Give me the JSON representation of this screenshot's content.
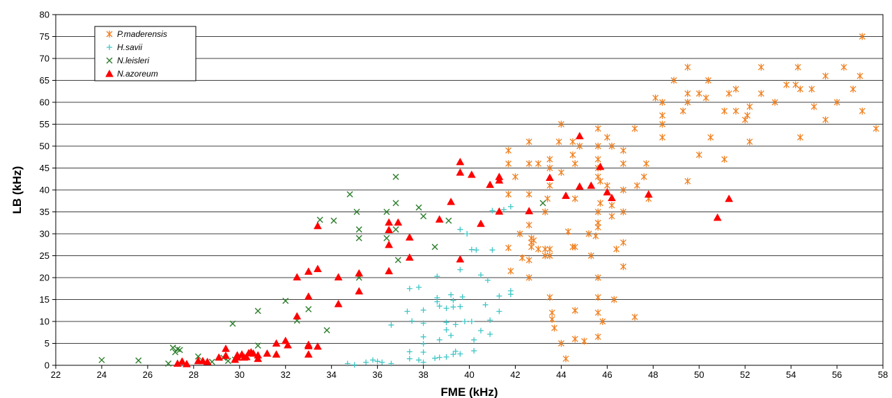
{
  "chart_data": {
    "type": "scatter",
    "title": "",
    "xlabel": "FME (kHz)",
    "ylabel": "LB (kHz)",
    "xlim": [
      22,
      58
    ],
    "ylim": [
      0,
      80
    ],
    "xticks": [
      "22",
      "24",
      "26",
      "28",
      "30",
      "32",
      "34",
      "36",
      "38",
      "40",
      "42",
      "44",
      "46",
      "48",
      "50",
      "52",
      "54",
      "56",
      "58"
    ],
    "yticks": [
      "0",
      "5",
      "10",
      "15",
      "20",
      "25",
      "30",
      "35",
      "40",
      "45",
      "50",
      "55",
      "60",
      "65",
      "70",
      "75",
      "80"
    ],
    "grid": "horizontal",
    "legend_position": "top-left",
    "series": [
      {
        "name": "P.maderensis",
        "marker": "asterisk",
        "color": "#f07f1e",
        "points": [
          [
            57.1,
            75
          ],
          [
            54.3,
            68
          ],
          [
            56.3,
            68
          ],
          [
            52.7,
            68
          ],
          [
            49.5,
            68
          ],
          [
            57,
            66
          ],
          [
            55.5,
            66
          ],
          [
            56.7,
            63
          ],
          [
            50.4,
            65
          ],
          [
            48.9,
            65
          ],
          [
            51.6,
            63
          ],
          [
            52.7,
            62
          ],
          [
            54.4,
            63
          ],
          [
            53.8,
            64
          ],
          [
            54.2,
            64
          ],
          [
            54.9,
            63
          ],
          [
            51.3,
            62
          ],
          [
            49.5,
            62
          ],
          [
            50,
            62
          ],
          [
            50.3,
            61
          ],
          [
            48.1,
            61
          ],
          [
            56,
            60
          ],
          [
            53.3,
            60
          ],
          [
            49.5,
            60
          ],
          [
            48.4,
            60
          ],
          [
            57.1,
            58
          ],
          [
            55,
            59
          ],
          [
            52.2,
            59
          ],
          [
            51.6,
            58
          ],
          [
            51.1,
            58
          ],
          [
            49.3,
            58
          ],
          [
            48.4,
            57
          ],
          [
            52.1,
            57
          ],
          [
            52,
            56
          ],
          [
            55.5,
            56
          ],
          [
            48.4,
            55
          ],
          [
            57.7,
            54
          ],
          [
            54.4,
            52
          ],
          [
            50.5,
            52
          ],
          [
            48.4,
            52
          ],
          [
            47.2,
            54
          ],
          [
            44,
            55
          ],
          [
            45.6,
            54
          ],
          [
            46,
            52
          ],
          [
            52.2,
            51
          ],
          [
            46.2,
            50
          ],
          [
            44.8,
            50
          ],
          [
            45.6,
            50
          ],
          [
            44.5,
            51
          ],
          [
            43.9,
            51
          ],
          [
            42.6,
            51
          ],
          [
            41.7,
            49
          ],
          [
            46.7,
            49
          ],
          [
            44.5,
            48
          ],
          [
            50,
            48
          ],
          [
            51.1,
            47
          ],
          [
            47.7,
            46
          ],
          [
            46.7,
            46
          ],
          [
            45.6,
            47
          ],
          [
            44.6,
            46
          ],
          [
            43.5,
            47
          ],
          [
            43,
            46
          ],
          [
            42.6,
            46
          ],
          [
            41.7,
            46
          ],
          [
            45.6,
            45
          ],
          [
            43.5,
            45
          ],
          [
            42,
            43
          ],
          [
            44,
            44
          ],
          [
            45.6,
            43
          ],
          [
            45.7,
            42
          ],
          [
            49.5,
            42
          ],
          [
            47.6,
            43
          ],
          [
            47.3,
            41
          ],
          [
            46,
            41
          ],
          [
            41.7,
            39
          ],
          [
            42.6,
            39
          ],
          [
            43.5,
            41
          ],
          [
            44.6,
            38
          ],
          [
            45.7,
            37
          ],
          [
            46.7,
            40
          ],
          [
            47.8,
            38
          ],
          [
            43.4,
            38
          ],
          [
            46.2,
            36.5
          ],
          [
            45.6,
            35
          ],
          [
            46.7,
            35
          ],
          [
            43.3,
            35
          ],
          [
            46.2,
            34
          ],
          [
            45.6,
            32.5
          ],
          [
            45.6,
            31.5
          ],
          [
            42.6,
            32
          ],
          [
            42.2,
            30
          ],
          [
            44.3,
            30.5
          ],
          [
            45.2,
            30
          ],
          [
            45.5,
            29.5
          ],
          [
            42.7,
            29
          ],
          [
            42.8,
            28.5
          ],
          [
            43.5,
            26.5
          ],
          [
            42.7,
            28
          ],
          [
            42.7,
            27
          ],
          [
            43,
            26.5
          ],
          [
            43.3,
            26.5
          ],
          [
            44.5,
            27
          ],
          [
            44.6,
            27
          ],
          [
            46.4,
            26.5
          ],
          [
            46.7,
            28
          ],
          [
            46.7,
            22.5
          ],
          [
            45.3,
            25
          ],
          [
            43.3,
            25
          ],
          [
            43.5,
            25
          ],
          [
            42.6,
            24
          ],
          [
            42.3,
            24.5
          ],
          [
            41.8,
            21.5
          ],
          [
            42.6,
            20
          ],
          [
            45.6,
            20
          ],
          [
            43.5,
            15.5
          ],
          [
            46.3,
            15
          ],
          [
            45.6,
            15.5
          ],
          [
            44.6,
            12.5
          ],
          [
            43.6,
            12
          ],
          [
            45.6,
            12
          ],
          [
            47.2,
            11
          ],
          [
            43.6,
            10.5
          ],
          [
            45.8,
            10
          ],
          [
            43.7,
            8.5
          ],
          [
            45.6,
            6.5
          ],
          [
            44.6,
            6
          ],
          [
            45,
            5.5
          ],
          [
            44,
            5
          ],
          [
            44.2,
            1.5
          ],
          [
            41.7,
            26.8
          ]
        ]
      },
      {
        "name": "H.savii",
        "marker": "plus",
        "color": "#3fc6c6",
        "points": [
          [
            41.8,
            36.2
          ],
          [
            41,
            35.3
          ],
          [
            41.5,
            35.5
          ],
          [
            39.6,
            31
          ],
          [
            40.3,
            26.3
          ],
          [
            41,
            26.3
          ],
          [
            39.9,
            30
          ],
          [
            40.1,
            26.4
          ],
          [
            39.6,
            21.8
          ],
          [
            40.5,
            20.6
          ],
          [
            40.8,
            19.4
          ],
          [
            38.6,
            20.3
          ],
          [
            37.8,
            17.8
          ],
          [
            37.4,
            17.5
          ],
          [
            41.8,
            17
          ],
          [
            41.8,
            16.2
          ],
          [
            41.3,
            15.8
          ],
          [
            39.7,
            15.6
          ],
          [
            39.2,
            16.1
          ],
          [
            38.6,
            15.4
          ],
          [
            38.6,
            14.5
          ],
          [
            38.7,
            13.5
          ],
          [
            39.3,
            14.8
          ],
          [
            39,
            13
          ],
          [
            39.3,
            13.3
          ],
          [
            39.6,
            13.4
          ],
          [
            38,
            12.6
          ],
          [
            40.7,
            13.8
          ],
          [
            41.3,
            12.3
          ],
          [
            37.3,
            12.3
          ],
          [
            37.5,
            10.1
          ],
          [
            38,
            9.6
          ],
          [
            36.6,
            9.2
          ],
          [
            39,
            9.8
          ],
          [
            39.4,
            9.3
          ],
          [
            39.8,
            10
          ],
          [
            40.1,
            10
          ],
          [
            40.9,
            10.3
          ],
          [
            39,
            8.1
          ],
          [
            38,
            6.5
          ],
          [
            40.5,
            7.9
          ],
          [
            39.2,
            6.8
          ],
          [
            40.9,
            7.1
          ],
          [
            38.7,
            5.8
          ],
          [
            40.2,
            5.8
          ],
          [
            38,
            4.9
          ],
          [
            40.2,
            3.3
          ],
          [
            37.4,
            3.1
          ],
          [
            38,
            3
          ],
          [
            39.6,
            2.6
          ],
          [
            39.4,
            3.2
          ],
          [
            39.3,
            2.5
          ],
          [
            39,
            1.9
          ],
          [
            38.7,
            1.8
          ],
          [
            38.5,
            1.6
          ],
          [
            37.4,
            1.5
          ],
          [
            37.8,
            1.2
          ],
          [
            38,
            0.7
          ],
          [
            36,
            0.9
          ],
          [
            35.8,
            1.2
          ],
          [
            35.5,
            0.7
          ],
          [
            36.2,
            0.7
          ],
          [
            36.6,
            0.4
          ],
          [
            35,
            0.1
          ],
          [
            34.7,
            0.4
          ]
        ]
      },
      {
        "name": "N.leisleri",
        "marker": "x",
        "color": "#2a7d2a",
        "points": [
          [
            36.8,
            43
          ],
          [
            34.8,
            39
          ],
          [
            36.8,
            37
          ],
          [
            37.8,
            36
          ],
          [
            36.4,
            35
          ],
          [
            35.1,
            35
          ],
          [
            38,
            34
          ],
          [
            33.5,
            33.2
          ],
          [
            34.1,
            33
          ],
          [
            39.1,
            33
          ],
          [
            35.2,
            31
          ],
          [
            36.8,
            31
          ],
          [
            36.4,
            29
          ],
          [
            35.2,
            29
          ],
          [
            38.5,
            27
          ],
          [
            36.9,
            24
          ],
          [
            43.2,
            37
          ],
          [
            35.2,
            20
          ],
          [
            32,
            14.7
          ],
          [
            33,
            12.8
          ],
          [
            30.8,
            12.4
          ],
          [
            32.5,
            10.2
          ],
          [
            29.7,
            9.5
          ],
          [
            33.8,
            8
          ],
          [
            30.8,
            4.5
          ],
          [
            27.1,
            4
          ],
          [
            27.4,
            3.5
          ],
          [
            27.3,
            3.7
          ],
          [
            27.2,
            3
          ],
          [
            28.2,
            2
          ],
          [
            29.3,
            1.7
          ],
          [
            29.8,
            1.3
          ],
          [
            29.5,
            1
          ],
          [
            28.8,
            0.8
          ],
          [
            26.9,
            0.4
          ],
          [
            25.6,
            1.1
          ],
          [
            24,
            1.2
          ]
        ]
      },
      {
        "name": "N.azoreum",
        "marker": "triangle",
        "color": "#ff0000",
        "points": [
          [
            44.8,
            52.3
          ],
          [
            39.6,
            46.4
          ],
          [
            45.7,
            45.3
          ],
          [
            39.6,
            44
          ],
          [
            40.1,
            43.5
          ],
          [
            41.3,
            43
          ],
          [
            41.3,
            42.2
          ],
          [
            40.9,
            41.2
          ],
          [
            43.5,
            42.8
          ],
          [
            44.8,
            40.8
          ],
          [
            45.3,
            41
          ],
          [
            46,
            39.5
          ],
          [
            46.2,
            38.2
          ],
          [
            47.8,
            39
          ],
          [
            44.2,
            38.7
          ],
          [
            51.3,
            38
          ],
          [
            39.2,
            37.3
          ],
          [
            42.6,
            35.2
          ],
          [
            41.3,
            35.1
          ],
          [
            50.8,
            33.7
          ],
          [
            38.7,
            33.3
          ],
          [
            36.5,
            32.6
          ],
          [
            36.9,
            32.6
          ],
          [
            40.5,
            32.3
          ],
          [
            33.4,
            31.8
          ],
          [
            36.5,
            30.9
          ],
          [
            37.4,
            29.2
          ],
          [
            36.5,
            27.5
          ],
          [
            39.6,
            24.2
          ],
          [
            37.4,
            24.6
          ],
          [
            33.4,
            22
          ],
          [
            33,
            21.4
          ],
          [
            35.2,
            21
          ],
          [
            36.5,
            21.5
          ],
          [
            32.5,
            20.1
          ],
          [
            34.3,
            20.1
          ],
          [
            35.2,
            16.9
          ],
          [
            33,
            15.7
          ],
          [
            34.3,
            14
          ],
          [
            32.5,
            11.2
          ],
          [
            32,
            5.6
          ],
          [
            32.1,
            4.6
          ],
          [
            31.6,
            5
          ],
          [
            33,
            4.7
          ],
          [
            33,
            4.4
          ],
          [
            33.4,
            4.3
          ],
          [
            31.2,
            2.7
          ],
          [
            31.6,
            2.5
          ],
          [
            30.8,
            2.3
          ],
          [
            30.8,
            1.5
          ],
          [
            30.4,
            2.8
          ],
          [
            30.1,
            2.5
          ],
          [
            29.9,
            2.3
          ],
          [
            29.4,
            3.8
          ],
          [
            29.4,
            2.2
          ],
          [
            29.8,
            1.3
          ],
          [
            30.3,
            1.9
          ],
          [
            30.5,
            3
          ],
          [
            30.6,
            2.7
          ],
          [
            30.2,
            1.8
          ],
          [
            29.9,
            1.8
          ],
          [
            29.1,
            1.8
          ],
          [
            28.6,
            0.8
          ],
          [
            28.2,
            1
          ],
          [
            28.4,
            1
          ],
          [
            27.7,
            0.3
          ],
          [
            27.5,
            0.9
          ],
          [
            27.3,
            0.4
          ],
          [
            33,
            2.5
          ]
        ]
      }
    ]
  }
}
